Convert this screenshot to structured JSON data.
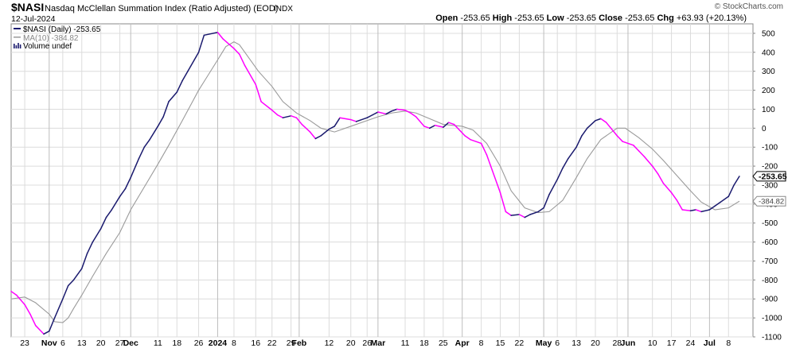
{
  "header": {
    "symbol": "$NASI",
    "description": "Nasdaq McClellan Summation Index (Ratio Adjusted) (EOD)",
    "exchange": "INDX",
    "date": "12-Jul-2024",
    "watermark": "© StockCharts.com",
    "ohlc": [
      {
        "label": "Open",
        "value": "-253.65"
      },
      {
        "label": "High",
        "value": "-253.65"
      },
      {
        "label": "Low",
        "value": "-253.65"
      },
      {
        "label": "Close",
        "value": "-253.65"
      },
      {
        "label": "Chg",
        "value": "+63.93 (+20.13%)"
      }
    ]
  },
  "legend": [
    {
      "text": "$NASI (Daily) -253.65",
      "color": "#1a1a6e"
    },
    {
      "text": "MA(10) -384.82",
      "color": "#999999"
    },
    {
      "text": "Volume undef",
      "color": "#1a1a6e"
    }
  ],
  "colors": {
    "up": "#1a1a6e",
    "down": "#ff00ff",
    "ma": "#9a9a9a",
    "grid": "#dcdcdc"
  },
  "price_tags": [
    {
      "value": -253.65,
      "label": "-253.65",
      "style": "dark"
    },
    {
      "value": -384.82,
      "label": "-384.82",
      "style": "light"
    }
  ],
  "chart_data": {
    "type": "line",
    "ylim": [
      -1100,
      550
    ],
    "y_ticks": [
      500,
      400,
      300,
      200,
      100,
      0,
      -100,
      -200,
      -300,
      -400,
      -500,
      -600,
      -700,
      -800,
      -900,
      -1000,
      -1100
    ],
    "x_range": [
      "2023-10-18",
      "2024-07-17"
    ],
    "x_ticks": [
      {
        "date": "2023-10-23",
        "label": "23",
        "bold": false
      },
      {
        "date": "2023-11-01",
        "label": "Nov",
        "bold": true
      },
      {
        "date": "2023-11-06",
        "label": "6",
        "bold": false
      },
      {
        "date": "2023-11-13",
        "label": "13",
        "bold": false
      },
      {
        "date": "2023-11-20",
        "label": "20",
        "bold": false
      },
      {
        "date": "2023-11-27",
        "label": "27",
        "bold": false
      },
      {
        "date": "2023-12-01",
        "label": "Dec",
        "bold": true
      },
      {
        "date": "2023-12-11",
        "label": "11",
        "bold": false
      },
      {
        "date": "2023-12-18",
        "label": "18",
        "bold": false
      },
      {
        "date": "2023-12-26",
        "label": "26",
        "bold": false
      },
      {
        "date": "2024-01-02",
        "label": "2024",
        "bold": true
      },
      {
        "date": "2024-01-08",
        "label": "8",
        "bold": false
      },
      {
        "date": "2024-01-16",
        "label": "16",
        "bold": false
      },
      {
        "date": "2024-01-22",
        "label": "22",
        "bold": false
      },
      {
        "date": "2024-01-29",
        "label": "29",
        "bold": false
      },
      {
        "date": "2024-02-01",
        "label": "Feb",
        "bold": true
      },
      {
        "date": "2024-02-12",
        "label": "12",
        "bold": false
      },
      {
        "date": "2024-02-20",
        "label": "20",
        "bold": false
      },
      {
        "date": "2024-02-26",
        "label": "26",
        "bold": false
      },
      {
        "date": "2024-03-01",
        "label": "Mar",
        "bold": true
      },
      {
        "date": "2024-03-11",
        "label": "11",
        "bold": false
      },
      {
        "date": "2024-03-18",
        "label": "18",
        "bold": false
      },
      {
        "date": "2024-03-25",
        "label": "25",
        "bold": false
      },
      {
        "date": "2024-04-01",
        "label": "Apr",
        "bold": true
      },
      {
        "date": "2024-04-08",
        "label": "8",
        "bold": false
      },
      {
        "date": "2024-04-15",
        "label": "15",
        "bold": false
      },
      {
        "date": "2024-04-22",
        "label": "22",
        "bold": false
      },
      {
        "date": "2024-05-01",
        "label": "May",
        "bold": true
      },
      {
        "date": "2024-05-06",
        "label": "6",
        "bold": false
      },
      {
        "date": "2024-05-13",
        "label": "13",
        "bold": false
      },
      {
        "date": "2024-05-20",
        "label": "20",
        "bold": false
      },
      {
        "date": "2024-05-28",
        "label": "28",
        "bold": false
      },
      {
        "date": "2024-06-01",
        "label": "Jun",
        "bold": true
      },
      {
        "date": "2024-06-10",
        "label": "10",
        "bold": false
      },
      {
        "date": "2024-06-17",
        "label": "17",
        "bold": false
      },
      {
        "date": "2024-06-24",
        "label": "24",
        "bold": false
      },
      {
        "date": "2024-07-01",
        "label": "Jul",
        "bold": true
      },
      {
        "date": "2024-07-08",
        "label": "8",
        "bold": false
      }
    ],
    "series": [
      {
        "name": "$NASI (Daily)",
        "values": [
          [
            "2023-10-18",
            -860
          ],
          [
            "2023-10-20",
            -880
          ],
          [
            "2023-10-23",
            -930
          ],
          [
            "2023-10-25",
            -980
          ],
          [
            "2023-10-27",
            -1040
          ],
          [
            "2023-10-30",
            -1085
          ],
          [
            "2023-11-01",
            -1070
          ],
          [
            "2023-11-03",
            -1000
          ],
          [
            "2023-11-06",
            -900
          ],
          [
            "2023-11-08",
            -830
          ],
          [
            "2023-11-10",
            -800
          ],
          [
            "2023-11-13",
            -740
          ],
          [
            "2023-11-15",
            -660
          ],
          [
            "2023-11-17",
            -600
          ],
          [
            "2023-11-20",
            -530
          ],
          [
            "2023-11-22",
            -470
          ],
          [
            "2023-11-24",
            -430
          ],
          [
            "2023-11-27",
            -360
          ],
          [
            "2023-11-29",
            -320
          ],
          [
            "2023-12-01",
            -260
          ],
          [
            "2023-12-04",
            -160
          ],
          [
            "2023-12-06",
            -100
          ],
          [
            "2023-12-08",
            -60
          ],
          [
            "2023-12-11",
            10
          ],
          [
            "2023-12-13",
            60
          ],
          [
            "2023-12-15",
            140
          ],
          [
            "2023-12-18",
            190
          ],
          [
            "2023-12-20",
            250
          ],
          [
            "2023-12-22",
            300
          ],
          [
            "2023-12-26",
            400
          ],
          [
            "2023-12-28",
            490
          ],
          [
            "2024-01-02",
            505
          ],
          [
            "2024-01-04",
            470
          ],
          [
            "2024-01-08",
            420
          ],
          [
            "2024-01-10",
            390
          ],
          [
            "2024-01-12",
            330
          ],
          [
            "2024-01-16",
            230
          ],
          [
            "2024-01-18",
            140
          ],
          [
            "2024-01-22",
            95
          ],
          [
            "2024-01-24",
            70
          ],
          [
            "2024-01-26",
            55
          ],
          [
            "2024-01-29",
            65
          ],
          [
            "2024-01-31",
            55
          ],
          [
            "2024-02-02",
            20
          ],
          [
            "2024-02-05",
            -20
          ],
          [
            "2024-02-07",
            -55
          ],
          [
            "2024-02-09",
            -40
          ],
          [
            "2024-02-12",
            -5
          ],
          [
            "2024-02-14",
            10
          ],
          [
            "2024-02-16",
            55
          ],
          [
            "2024-02-20",
            45
          ],
          [
            "2024-02-22",
            35
          ],
          [
            "2024-02-26",
            55
          ],
          [
            "2024-02-28",
            70
          ],
          [
            "2024-03-01",
            85
          ],
          [
            "2024-03-04",
            75
          ],
          [
            "2024-03-06",
            90
          ],
          [
            "2024-03-08",
            100
          ],
          [
            "2024-03-11",
            95
          ],
          [
            "2024-03-13",
            80
          ],
          [
            "2024-03-15",
            60
          ],
          [
            "2024-03-18",
            10
          ],
          [
            "2024-03-20",
            0
          ],
          [
            "2024-03-22",
            15
          ],
          [
            "2024-03-25",
            5
          ],
          [
            "2024-03-27",
            30
          ],
          [
            "2024-03-29",
            20
          ],
          [
            "2024-04-02",
            -40
          ],
          [
            "2024-04-04",
            -60
          ],
          [
            "2024-04-08",
            -80
          ],
          [
            "2024-04-10",
            -140
          ],
          [
            "2024-04-12",
            -220
          ],
          [
            "2024-04-15",
            -340
          ],
          [
            "2024-04-17",
            -440
          ],
          [
            "2024-04-19",
            -460
          ],
          [
            "2024-04-22",
            -455
          ],
          [
            "2024-04-24",
            -470
          ],
          [
            "2024-04-26",
            -455
          ],
          [
            "2024-04-29",
            -440
          ],
          [
            "2024-05-01",
            -420
          ],
          [
            "2024-05-03",
            -350
          ],
          [
            "2024-05-06",
            -270
          ],
          [
            "2024-05-08",
            -210
          ],
          [
            "2024-05-10",
            -160
          ],
          [
            "2024-05-13",
            -100
          ],
          [
            "2024-05-15",
            -40
          ],
          [
            "2024-05-17",
            0
          ],
          [
            "2024-05-20",
            40
          ],
          [
            "2024-05-22",
            50
          ],
          [
            "2024-05-24",
            30
          ],
          [
            "2024-05-28",
            -40
          ],
          [
            "2024-05-30",
            -70
          ],
          [
            "2024-06-03",
            -90
          ],
          [
            "2024-06-05",
            -120
          ],
          [
            "2024-06-07",
            -150
          ],
          [
            "2024-06-10",
            -200
          ],
          [
            "2024-06-12",
            -240
          ],
          [
            "2024-06-14",
            -290
          ],
          [
            "2024-06-17",
            -340
          ],
          [
            "2024-06-19",
            -380
          ],
          [
            "2024-06-21",
            -430
          ],
          [
            "2024-06-24",
            -435
          ],
          [
            "2024-06-26",
            -430
          ],
          [
            "2024-06-28",
            -440
          ],
          [
            "2024-07-01",
            -430
          ],
          [
            "2024-07-03",
            -410
          ],
          [
            "2024-07-05",
            -390
          ],
          [
            "2024-07-08",
            -360
          ],
          [
            "2024-07-10",
            -300
          ],
          [
            "2024-07-12",
            -253.65
          ]
        ]
      },
      {
        "name": "MA(10)",
        "values": [
          [
            "2023-10-18",
            -900
          ],
          [
            "2023-10-23",
            -890
          ],
          [
            "2023-10-27",
            -920
          ],
          [
            "2023-11-01",
            -980
          ],
          [
            "2023-11-03",
            -1020
          ],
          [
            "2023-11-06",
            -1025
          ],
          [
            "2023-11-08",
            -1000
          ],
          [
            "2023-11-10",
            -950
          ],
          [
            "2023-11-13",
            -880
          ],
          [
            "2023-11-17",
            -780
          ],
          [
            "2023-11-22",
            -660
          ],
          [
            "2023-11-27",
            -550
          ],
          [
            "2023-12-01",
            -430
          ],
          [
            "2023-12-06",
            -310
          ],
          [
            "2023-12-11",
            -190
          ],
          [
            "2023-12-15",
            -90
          ],
          [
            "2023-12-20",
            40
          ],
          [
            "2023-12-26",
            200
          ],
          [
            "2024-01-02",
            360
          ],
          [
            "2024-01-05",
            430
          ],
          [
            "2024-01-08",
            455
          ],
          [
            "2024-01-10",
            440
          ],
          [
            "2024-01-12",
            400
          ],
          [
            "2024-01-17",
            300
          ],
          [
            "2024-01-22",
            220
          ],
          [
            "2024-01-26",
            140
          ],
          [
            "2024-01-31",
            80
          ],
          [
            "2024-02-05",
            40
          ],
          [
            "2024-02-09",
            0
          ],
          [
            "2024-02-14",
            -20
          ],
          [
            "2024-02-20",
            10
          ],
          [
            "2024-02-26",
            40
          ],
          [
            "2024-03-01",
            60
          ],
          [
            "2024-03-06",
            80
          ],
          [
            "2024-03-11",
            90
          ],
          [
            "2024-03-15",
            80
          ],
          [
            "2024-03-20",
            50
          ],
          [
            "2024-03-25",
            20
          ],
          [
            "2024-04-01",
            10
          ],
          [
            "2024-04-05",
            -10
          ],
          [
            "2024-04-10",
            -80
          ],
          [
            "2024-04-15",
            -200
          ],
          [
            "2024-04-19",
            -330
          ],
          [
            "2024-04-24",
            -420
          ],
          [
            "2024-04-29",
            -445
          ],
          [
            "2024-05-03",
            -440
          ],
          [
            "2024-05-08",
            -380
          ],
          [
            "2024-05-13",
            -260
          ],
          [
            "2024-05-17",
            -160
          ],
          [
            "2024-05-22",
            -60
          ],
          [
            "2024-05-28",
            0
          ],
          [
            "2024-05-31",
            0
          ],
          [
            "2024-06-05",
            -50
          ],
          [
            "2024-06-10",
            -110
          ],
          [
            "2024-06-14",
            -170
          ],
          [
            "2024-06-19",
            -250
          ],
          [
            "2024-06-24",
            -330
          ],
          [
            "2024-06-28",
            -390
          ],
          [
            "2024-07-03",
            -430
          ],
          [
            "2024-07-08",
            -420
          ],
          [
            "2024-07-12",
            -384.82
          ]
        ]
      }
    ]
  }
}
